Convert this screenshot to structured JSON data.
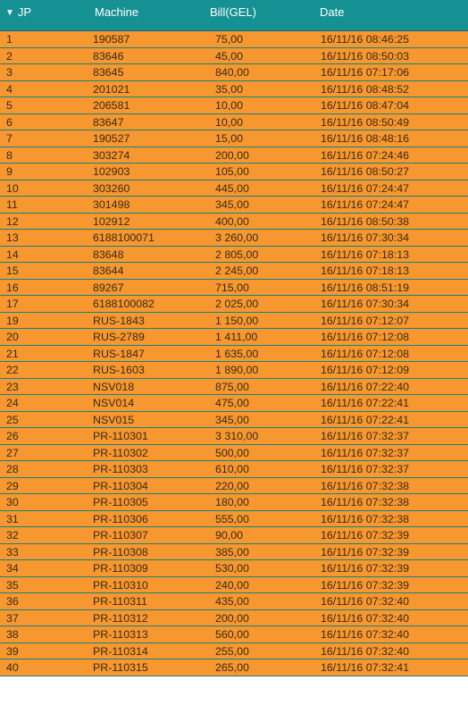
{
  "header": {
    "sort_icon": "triangle-down-icon",
    "sort_glyph": "▼",
    "jp": "JP",
    "machine": "Machine",
    "bill": "Bill(GEL)",
    "date": "Date"
  },
  "colors": {
    "header_bg": "#159193",
    "row_bg": "#f7972f",
    "row_divider": "#14837f"
  },
  "rows": [
    {
      "jp": "1",
      "machine": "190587",
      "bill": "75,00",
      "date": "16/11/16 08:46:25"
    },
    {
      "jp": "2",
      "machine": "83646",
      "bill": "45,00",
      "date": "16/11/16 08:50:03"
    },
    {
      "jp": "3",
      "machine": "83645",
      "bill": "840,00",
      "date": "16/11/16 07:17:06"
    },
    {
      "jp": "4",
      "machine": "201021",
      "bill": "35,00",
      "date": "16/11/16 08:48:52"
    },
    {
      "jp": "5",
      "machine": "206581",
      "bill": "10,00",
      "date": "16/11/16 08:47:04"
    },
    {
      "jp": "6",
      "machine": "83647",
      "bill": "10,00",
      "date": "16/11/16 08:50:49"
    },
    {
      "jp": "7",
      "machine": "190527",
      "bill": "15,00",
      "date": "16/11/16 08:48:16"
    },
    {
      "jp": "8",
      "machine": "303274",
      "bill": "200,00",
      "date": "16/11/16 07:24:46"
    },
    {
      "jp": "9",
      "machine": "102903",
      "bill": "105,00",
      "date": "16/11/16 08:50:27"
    },
    {
      "jp": "10",
      "machine": "303260",
      "bill": "445,00",
      "date": "16/11/16 07:24:47"
    },
    {
      "jp": "11",
      "machine": "301498",
      "bill": "345,00",
      "date": "16/11/16 07:24:47"
    },
    {
      "jp": "12",
      "machine": "102912",
      "bill": "400,00",
      "date": "16/11/16 08:50:38"
    },
    {
      "jp": "13",
      "machine": "6188100071",
      "bill": "3 260,00",
      "date": "16/11/16 07:30:34"
    },
    {
      "jp": "14",
      "machine": "83648",
      "bill": "2 805,00",
      "date": "16/11/16 07:18:13"
    },
    {
      "jp": "15",
      "machine": "83644",
      "bill": "2 245,00",
      "date": "16/11/16 07:18:13"
    },
    {
      "jp": "16",
      "machine": "89267",
      "bill": "715,00",
      "date": "16/11/16 08:51:19"
    },
    {
      "jp": "17",
      "machine": "6188100082",
      "bill": "2 025,00",
      "date": "16/11/16 07:30:34"
    },
    {
      "jp": "19",
      "machine": "RUS-1843",
      "bill": "1 150,00",
      "date": "16/11/16 07:12:07"
    },
    {
      "jp": "20",
      "machine": "RUS-2789",
      "bill": "1 411,00",
      "date": "16/11/16 07:12:08"
    },
    {
      "jp": "21",
      "machine": "RUS-1847",
      "bill": "1 635,00",
      "date": "16/11/16 07:12:08"
    },
    {
      "jp": "22",
      "machine": "RUS-1603",
      "bill": "1 890,00",
      "date": "16/11/16 07:12:09"
    },
    {
      "jp": "23",
      "machine": "NSV018",
      "bill": "875,00",
      "date": "16/11/16 07:22:40"
    },
    {
      "jp": "24",
      "machine": "NSV014",
      "bill": "475,00",
      "date": "16/11/16 07:22:41"
    },
    {
      "jp": "25",
      "machine": "NSV015",
      "bill": "345,00",
      "date": "16/11/16 07:22:41"
    },
    {
      "jp": "26",
      "machine": "PR-110301",
      "bill": "3 310,00",
      "date": "16/11/16 07:32:37"
    },
    {
      "jp": "27",
      "machine": "PR-110302",
      "bill": "500,00",
      "date": "16/11/16 07:32:37"
    },
    {
      "jp": "28",
      "machine": "PR-110303",
      "bill": "610,00",
      "date": "16/11/16 07:32:37"
    },
    {
      "jp": "29",
      "machine": "PR-110304",
      "bill": "220,00",
      "date": "16/11/16 07:32:38"
    },
    {
      "jp": "30",
      "machine": "PR-110305",
      "bill": "180,00",
      "date": "16/11/16 07:32:38"
    },
    {
      "jp": "31",
      "machine": "PR-110306",
      "bill": "555,00",
      "date": "16/11/16 07:32:38"
    },
    {
      "jp": "32",
      "machine": "PR-110307",
      "bill": "90,00",
      "date": "16/11/16 07:32:39"
    },
    {
      "jp": "33",
      "machine": "PR-110308",
      "bill": "385,00",
      "date": "16/11/16 07:32:39"
    },
    {
      "jp": "34",
      "machine": "PR-110309",
      "bill": "530,00",
      "date": "16/11/16 07:32:39"
    },
    {
      "jp": "35",
      "machine": "PR-110310",
      "bill": "240,00",
      "date": "16/11/16 07:32:39"
    },
    {
      "jp": "36",
      "machine": "PR-110311",
      "bill": "435,00",
      "date": "16/11/16 07:32:40"
    },
    {
      "jp": "37",
      "machine": "PR-110312",
      "bill": "200,00",
      "date": "16/11/16 07:32:40"
    },
    {
      "jp": "38",
      "machine": "PR-110313",
      "bill": "560,00",
      "date": "16/11/16 07:32:40"
    },
    {
      "jp": "39",
      "machine": "PR-110314",
      "bill": "255,00",
      "date": "16/11/16 07:32:40"
    },
    {
      "jp": "40",
      "machine": "PR-110315",
      "bill": "265,00",
      "date": "16/11/16 07:32:41"
    }
  ]
}
